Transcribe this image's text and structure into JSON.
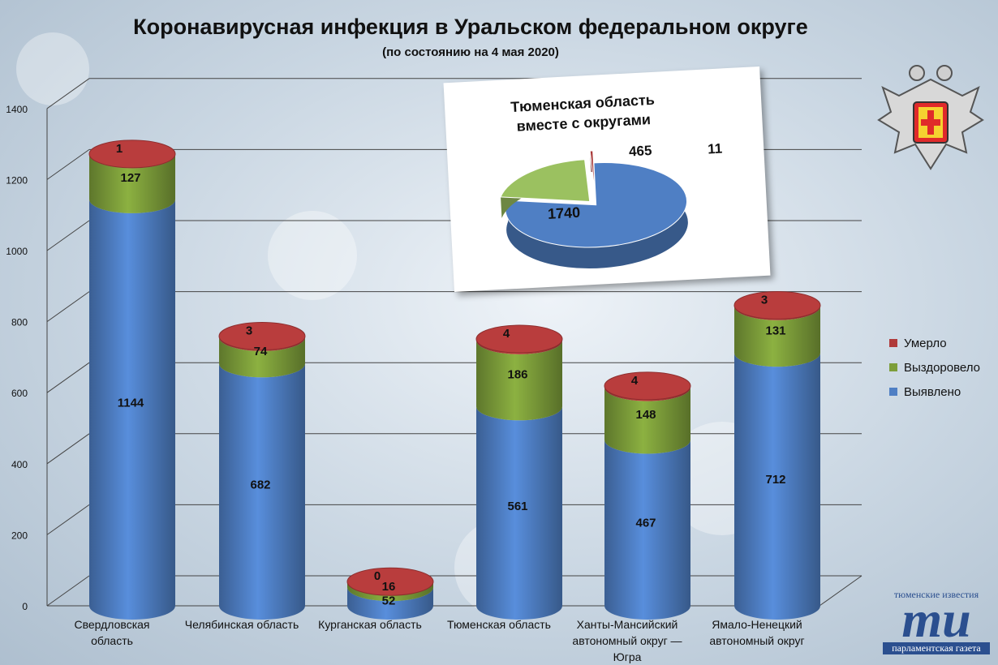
{
  "chart_data": {
    "type": "bar",
    "title": "Коронавирусная инфекция в Уральском федеральном округе",
    "subtitle": "(по состоянию на 4 мая 2020)",
    "stacked": true,
    "ylim": [
      0,
      1400
    ],
    "yticks": [
      0,
      200,
      400,
      600,
      800,
      1000,
      1200,
      1400
    ],
    "categories": [
      "Свердловская область",
      "Челябинская область",
      "Курганская область",
      "Тюменская область",
      "Ханты-Мансийский автономный округ — Югра",
      "Ямало-Ненецкий автономный округ"
    ],
    "category_lines": [
      [
        "Свердловская",
        "область"
      ],
      [
        "Челябинская область"
      ],
      [
        "Курганская область"
      ],
      [
        "Тюменская область"
      ],
      [
        "Ханты-Мансийский",
        "автономный округ —",
        "Югра"
      ],
      [
        "Ямало-Ненецкий",
        "автономный округ"
      ]
    ],
    "series": [
      {
        "name": "Выявлено",
        "color": "#4f7fc4",
        "values": [
          1144,
          682,
          52,
          561,
          467,
          712
        ]
      },
      {
        "name": "Выздоровело",
        "color": "#7d9e3a",
        "values": [
          127,
          74,
          16,
          186,
          148,
          131
        ]
      },
      {
        "name": "Умерло",
        "color": "#b03a3a",
        "values": [
          1,
          3,
          0,
          4,
          4,
          3
        ]
      }
    ],
    "legend_position": "right",
    "grid": true
  },
  "inset_chart": {
    "type": "pie",
    "title_lines": [
      "Тюменская область",
      "вместе с округами"
    ],
    "slices": [
      {
        "label": "1740",
        "value": 1740,
        "color": "#4f7fc4"
      },
      {
        "label": "465",
        "value": 465,
        "color": "#9bc160"
      },
      {
        "label": "11",
        "value": 11,
        "color": "#a83838"
      }
    ]
  },
  "branding": {
    "top": "тюменские известия",
    "logo": "ти",
    "bottom": "парламентская газета"
  }
}
